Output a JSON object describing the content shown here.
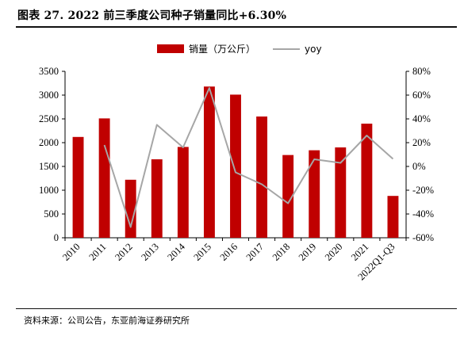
{
  "page": {
    "title": "图表 27. 2022 前三季度公司种子销量同比+6.30%",
    "source": "资料来源：公司公告，东亚前海证券研究所"
  },
  "chart_data": {
    "type": "bar",
    "categories": [
      "2010",
      "2011",
      "2012",
      "2013",
      "2014",
      "2015",
      "2016",
      "2017",
      "2018",
      "2019",
      "2020",
      "2021",
      "2022Q1-Q3"
    ],
    "series": [
      {
        "name": "销量（万公斤）",
        "type": "bar",
        "axis": "left",
        "color": "#C00000",
        "values": [
          2120,
          2510,
          1220,
          1650,
          1910,
          3180,
          3010,
          2550,
          1740,
          1840,
          1900,
          2400,
          880
        ]
      },
      {
        "name": "yoy",
        "type": "line",
        "axis": "right",
        "color": "#A6A6A6",
        "values": [
          null,
          18,
          -51,
          35,
          16,
          66,
          -5,
          -15,
          -31,
          6,
          3,
          26,
          6.3
        ]
      }
    ],
    "y_left": {
      "ylim": [
        0,
        3500
      ],
      "ticks": [
        0,
        500,
        1000,
        1500,
        2000,
        2500,
        3000,
        3500
      ]
    },
    "y_right": {
      "ylim": [
        -60,
        80
      ],
      "ticks": [
        -60,
        -40,
        -20,
        0,
        20,
        40,
        60,
        80
      ],
      "tick_labels": [
        "-60%",
        "-40%",
        "-20%",
        "0%",
        "20%",
        "40%",
        "60%",
        "80%"
      ]
    },
    "legend": {
      "position": "top-center"
    },
    "grid": false
  }
}
